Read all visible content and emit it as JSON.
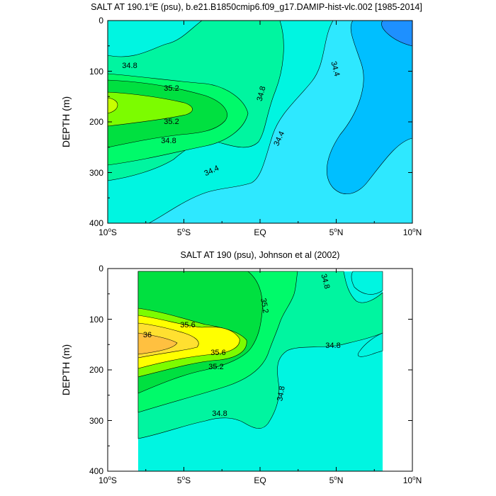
{
  "chart_data": [
    {
      "type": "contour",
      "title": "SALT AT 190.1°E (psu), b.e21.B1850cmip6.f09_g17.DAMIP-hist-vlc.002 [1985-2014]",
      "title_main": "SALT AT 190.1",
      "title_degree": "o",
      "title_rest": "E (psu), b.e21.B1850cmip6.f09_g17.DAMIP-hist-vlc.002 [1985-2014]",
      "ylabel": "DEPTH (m)",
      "xlim": [
        -10,
        10
      ],
      "ylim": [
        400,
        0
      ],
      "xticks": [
        {
          "value": -10,
          "num": "10",
          "hemi": "S"
        },
        {
          "value": -5,
          "num": "5",
          "hemi": "S"
        },
        {
          "value": 0,
          "num": "EQ",
          "hemi": ""
        },
        {
          "value": 5,
          "num": "5",
          "hemi": "N"
        },
        {
          "value": 10,
          "num": "10",
          "hemi": "N"
        }
      ],
      "yticks": [
        "0",
        "100",
        "200",
        "300",
        "400"
      ],
      "contour_levels": [
        34.0,
        34.2,
        34.4,
        34.6,
        34.8,
        35.0,
        35.2,
        35.4,
        35.6
      ],
      "contour_labels": [
        "34.8",
        "35.2",
        "35.2",
        "34.8",
        "34.8",
        "34.4",
        "34.4",
        "34.4"
      ],
      "max_salinity_location": {
        "lat": -10,
        "depth": 160,
        "value": 35.6
      },
      "min_salinity_location": {
        "lat": 9,
        "depth": 20,
        "value": 34.1
      },
      "colors": {
        "c34_0": "#1E90FF",
        "c34_2": "#00BFFF",
        "c34_4": "#2EE8FF",
        "c34_6": "#00F5E1",
        "c34_8": "#00F5A0",
        "c35_0": "#00FA6A",
        "c35_2": "#00E040",
        "c35_4": "#7CFC00"
      }
    },
    {
      "type": "contour",
      "title": "SALT AT 190 (psu), Johnson et al (2002)",
      "ylabel": "DEPTH (m)",
      "xlim": [
        -10,
        10
      ],
      "ylim": [
        400,
        0
      ],
      "data_xlim": [
        -8,
        8
      ],
      "xticks": [
        {
          "value": -10,
          "num": "10",
          "hemi": "S"
        },
        {
          "value": -5,
          "num": "5",
          "hemi": "S"
        },
        {
          "value": 0,
          "num": "EQ",
          "hemi": ""
        },
        {
          "value": 5,
          "num": "5",
          "hemi": "N"
        },
        {
          "value": 10,
          "num": "10",
          "hemi": "N"
        }
      ],
      "yticks": [
        "0",
        "100",
        "200",
        "300",
        "400"
      ],
      "contour_levels": [
        34.8,
        35.0,
        35.2,
        35.4,
        35.6,
        35.8,
        36.0
      ],
      "contour_labels": [
        "36",
        "35.6",
        "35.6",
        "35.2",
        "35.2",
        "34.8",
        "34.8",
        "34.8",
        "34.8"
      ],
      "max_salinity_location": {
        "lat": -7,
        "depth": 150,
        "value": 36.1
      },
      "colors": {
        "c34_6": "#00F5E1",
        "c34_8": "#00F5A0",
        "c35_0": "#00FA6A",
        "c35_2": "#00E040",
        "c35_4": "#7CFC00",
        "c35_6": "#FFFF00",
        "c35_8": "#FFE030",
        "c36_0": "#FFC040"
      }
    }
  ]
}
